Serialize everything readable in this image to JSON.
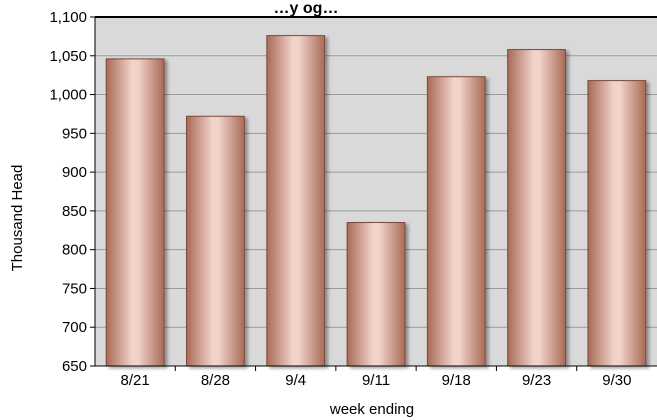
{
  "chart_data": {
    "type": "bar",
    "title": "…y og…",
    "xlabel": "week ending",
    "ylabel": "Thousand Head",
    "categories": [
      "8/21",
      "8/28",
      "9/4",
      "9/11",
      "9/18",
      "9/23",
      "9/30"
    ],
    "values": [
      1046,
      972,
      1076,
      835,
      1023,
      1058,
      1018
    ],
    "ylim": [
      650,
      1100
    ],
    "ytick_step": 50,
    "yticks": [
      "650",
      "700",
      "750",
      "800",
      "850",
      "900",
      "950",
      "1,000",
      "1,050",
      "1,100"
    ],
    "grid": true,
    "legend": "none",
    "colors": {
      "plot_background": "#d9d9d9",
      "bar_edge": "#7a4a3a",
      "bar_dark": "#a86a55",
      "bar_light": "#f2d3cb",
      "grid": "#9a9a9a",
      "axis": "#000000"
    }
  }
}
